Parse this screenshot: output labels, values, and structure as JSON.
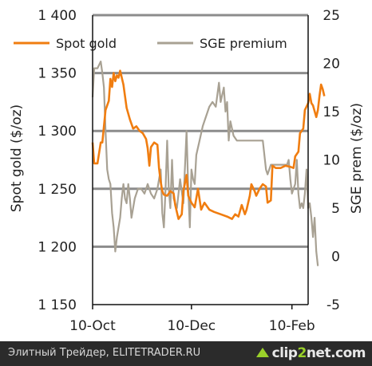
{
  "chart_data": {
    "type": "line",
    "legend_position": "top",
    "grid": true,
    "x_ticks": [
      "10-Oct",
      "10-Dec",
      "10-Feb"
    ],
    "x_domain": [
      "10-Oct",
      "20-Feb"
    ],
    "y_left": {
      "label": "Spot gold ($/oz)",
      "ticks": [
        "1 150",
        "1 200",
        "1 250",
        "1 300",
        "1 350",
        "1 400"
      ],
      "range": [
        1150,
        1400
      ]
    },
    "y_right": {
      "label": "SGE prem ($/oz)",
      "ticks": [
        "-5",
        "0",
        "5",
        "10",
        "15",
        "20",
        "25"
      ],
      "range": [
        -5,
        25
      ]
    },
    "series": [
      {
        "name": "Spot gold",
        "axis": "left",
        "color": "#f07d10",
        "points": [
          [
            0,
            1290
          ],
          [
            1,
            1272
          ],
          [
            3,
            1272
          ],
          [
            5,
            1290
          ],
          [
            6,
            1290
          ],
          [
            8,
            1318
          ],
          [
            10,
            1326
          ],
          [
            11,
            1345
          ],
          [
            12,
            1338
          ],
          [
            13,
            1350
          ],
          [
            14,
            1343
          ],
          [
            15,
            1348
          ],
          [
            16,
            1346
          ],
          [
            17,
            1352
          ],
          [
            19,
            1340
          ],
          [
            21,
            1320
          ],
          [
            23,
            1310
          ],
          [
            25,
            1302
          ],
          [
            27,
            1304
          ],
          [
            29,
            1300
          ],
          [
            31,
            1298
          ],
          [
            33,
            1293
          ],
          [
            34,
            1285
          ],
          [
            35,
            1270
          ],
          [
            36,
            1286
          ],
          [
            38,
            1290
          ],
          [
            40,
            1288
          ],
          [
            41,
            1268
          ],
          [
            42,
            1256
          ],
          [
            43,
            1248
          ],
          [
            44,
            1245
          ],
          [
            46,
            1244
          ],
          [
            48,
            1248
          ],
          [
            50,
            1246
          ],
          [
            51,
            1236
          ],
          [
            53,
            1224
          ],
          [
            55,
            1228
          ],
          [
            56,
            1248
          ],
          [
            58,
            1262
          ],
          [
            59,
            1244
          ],
          [
            61,
            1238
          ],
          [
            63,
            1234
          ],
          [
            65,
            1250
          ],
          [
            67,
            1232
          ],
          [
            69,
            1238
          ],
          [
            72,
            1232
          ],
          [
            75,
            1230
          ],
          [
            79,
            1228
          ],
          [
            83,
            1226
          ],
          [
            86,
            1224
          ],
          [
            88,
            1228
          ],
          [
            90,
            1226
          ],
          [
            92,
            1236
          ],
          [
            94,
            1228
          ],
          [
            95,
            1232
          ],
          [
            97,
            1244
          ],
          [
            98,
            1254
          ],
          [
            100,
            1248
          ],
          [
            101,
            1244
          ],
          [
            103,
            1250
          ],
          [
            105,
            1254
          ],
          [
            107,
            1252
          ],
          [
            108,
            1238
          ],
          [
            110,
            1240
          ],
          [
            111,
            1270
          ],
          [
            113,
            1268
          ],
          [
            116,
            1268
          ],
          [
            119,
            1270
          ],
          [
            122,
            1269
          ],
          [
            124,
            1268
          ],
          [
            125,
            1278
          ],
          [
            127,
            1282
          ],
          [
            128,
            1298
          ],
          [
            130,
            1302
          ],
          [
            131,
            1318
          ],
          [
            133,
            1324
          ],
          [
            134,
            1332
          ],
          [
            135,
            1324
          ],
          [
            136,
            1322
          ],
          [
            138,
            1312
          ],
          [
            139,
            1318
          ],
          [
            140,
            1330
          ],
          [
            141,
            1340
          ],
          [
            142,
            1336
          ],
          [
            143,
            1330
          ]
        ]
      },
      {
        "name": "SGE premium",
        "axis": "right",
        "color": "#a8a193",
        "points": [
          [
            0,
            16.5
          ],
          [
            1,
            19.5
          ],
          [
            3,
            19.5
          ],
          [
            5,
            20.2
          ],
          [
            6,
            19
          ],
          [
            7,
            17.5
          ],
          [
            8,
            13
          ],
          [
            9,
            9
          ],
          [
            10,
            8
          ],
          [
            11,
            7.5
          ],
          [
            12,
            4.5
          ],
          [
            13,
            3
          ],
          [
            14,
            0.5
          ],
          [
            15,
            2
          ],
          [
            17,
            4
          ],
          [
            18,
            6
          ],
          [
            19,
            7.5
          ],
          [
            20,
            6
          ],
          [
            21,
            5.5
          ],
          [
            22,
            7.5
          ],
          [
            23,
            6
          ],
          [
            24,
            4
          ],
          [
            26,
            6
          ],
          [
            28,
            7
          ],
          [
            30,
            7
          ],
          [
            32,
            6.5
          ],
          [
            34,
            7.5
          ],
          [
            36,
            6.5
          ],
          [
            38,
            6
          ],
          [
            40,
            7
          ],
          [
            42,
            9
          ],
          [
            43,
            4.5
          ],
          [
            44,
            3
          ],
          [
            45,
            7
          ],
          [
            46,
            12
          ],
          [
            47,
            7
          ],
          [
            48,
            5
          ],
          [
            49,
            10
          ],
          [
            50,
            6
          ],
          [
            52,
            5
          ],
          [
            54,
            8
          ],
          [
            56,
            5.5
          ],
          [
            58,
            13
          ],
          [
            59,
            7
          ],
          [
            60,
            3
          ],
          [
            61,
            9
          ],
          [
            62,
            8
          ],
          [
            63,
            7.5
          ],
          [
            64,
            10.5
          ],
          [
            66,
            12
          ],
          [
            68,
            13.5
          ],
          [
            70,
            14.5
          ],
          [
            72,
            15.5
          ],
          [
            74,
            16
          ],
          [
            76,
            15.5
          ],
          [
            78,
            18
          ],
          [
            79,
            16
          ],
          [
            81,
            17.5
          ],
          [
            82,
            15
          ],
          [
            83,
            16
          ],
          [
            84,
            12
          ],
          [
            85,
            14
          ],
          [
            87,
            12.5
          ],
          [
            89,
            12
          ],
          [
            91,
            12
          ],
          [
            93,
            12
          ],
          [
            95,
            12
          ],
          [
            97,
            12
          ],
          [
            99,
            12
          ],
          [
            101,
            12
          ],
          [
            103,
            12
          ],
          [
            105,
            12
          ],
          [
            107,
            9
          ],
          [
            108,
            8.5
          ],
          [
            110,
            9.5
          ],
          [
            112,
            9.5
          ],
          [
            114,
            9.5
          ],
          [
            116,
            9.5
          ],
          [
            118,
            9.5
          ],
          [
            120,
            9.5
          ],
          [
            121,
            10
          ],
          [
            122,
            8
          ],
          [
            123,
            6.5
          ],
          [
            124,
            7
          ],
          [
            125,
            7.5
          ],
          [
            126,
            10
          ],
          [
            127,
            6.5
          ],
          [
            128,
            5
          ],
          [
            129,
            5.5
          ],
          [
            130,
            5
          ],
          [
            131,
            6.5
          ],
          [
            132,
            9
          ],
          [
            133,
            5
          ],
          [
            134,
            5.5
          ],
          [
            135,
            4
          ],
          [
            136,
            2
          ],
          [
            137,
            4
          ],
          [
            138,
            0.5
          ],
          [
            139,
            -1
          ]
        ]
      }
    ]
  },
  "footer": {
    "caption": "Элитный Трейдер, ELITETRADER.RU",
    "logo_prefix": "clip",
    "logo_number": "2",
    "logo_suffix": "net.com"
  }
}
